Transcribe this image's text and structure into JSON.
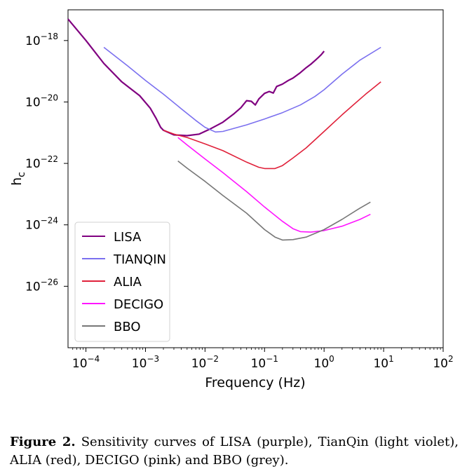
{
  "chart_data": {
    "type": "line",
    "xlabel": "Frequency (Hz)",
    "ylabel_base": "h",
    "ylabel_sub": "c",
    "x_scale": "log",
    "y_scale": "log",
    "xlim": [
      5e-05,
      100
    ],
    "ylim": [
      1e-28,
      1e-17
    ],
    "x_ticks": [
      {
        "value": 0.0001,
        "base": "10",
        "exp": "−4"
      },
      {
        "value": 0.001,
        "base": "10",
        "exp": "−3"
      },
      {
        "value": 0.01,
        "base": "10",
        "exp": "−2"
      },
      {
        "value": 0.1,
        "base": "10",
        "exp": "−1"
      },
      {
        "value": 1,
        "base": "10",
        "exp": "0"
      },
      {
        "value": 10,
        "base": "10",
        "exp": "1"
      },
      {
        "value": 100,
        "base": "10",
        "exp": "2"
      }
    ],
    "y_ticks": [
      {
        "value": 1e-18,
        "base": "10",
        "exp": "−18"
      },
      {
        "value": 1e-20,
        "base": "10",
        "exp": "−20"
      },
      {
        "value": 1e-22,
        "base": "10",
        "exp": "−22"
      },
      {
        "value": 1e-24,
        "base": "10",
        "exp": "−24"
      },
      {
        "value": 1e-26,
        "base": "10",
        "exp": "−26"
      }
    ],
    "legend_position": "lower-left",
    "series": [
      {
        "name": "LISA",
        "color": "#800080",
        "width": 2.2,
        "x": [
          5e-05,
          0.0001,
          0.0002,
          0.0004,
          0.0008,
          0.0012,
          0.0015,
          0.0018,
          0.002,
          0.003,
          0.005,
          0.008,
          0.012,
          0.02,
          0.03,
          0.04,
          0.05,
          0.06,
          0.07,
          0.08,
          0.1,
          0.12,
          0.14,
          0.16,
          0.2,
          0.25,
          0.3,
          0.4,
          0.5,
          0.6,
          0.7,
          0.8,
          0.9,
          1.0
        ],
        "y": [
          5e-18,
          1e-18,
          1.8e-19,
          4.5e-20,
          1.6e-20,
          6.3e-21,
          3e-21,
          1.5e-21,
          1.2e-21,
          8.5e-22,
          8e-22,
          9e-22,
          1.3e-21,
          2.2e-21,
          4e-21,
          6.5e-21,
          1.1e-20,
          1.05e-20,
          8e-21,
          1.25e-20,
          1.9e-20,
          2.2e-20,
          1.95e-20,
          3.2e-20,
          3.8e-20,
          5e-20,
          6e-20,
          9e-20,
          1.3e-19,
          1.7e-19,
          2.2e-19,
          2.8e-19,
          3.5e-19,
          4.5e-19
        ]
      },
      {
        "name": "TIANQIN",
        "color": "#7b70ef",
        "width": 1.6,
        "x": [
          0.0002,
          0.0005,
          0.001,
          0.002,
          0.004,
          0.007,
          0.01,
          0.015,
          0.02,
          0.05,
          0.1,
          0.2,
          0.4,
          0.7,
          1,
          2,
          4,
          9
        ],
        "y": [
          6e-19,
          1.5e-19,
          5e-20,
          1.8e-20,
          6e-21,
          2.5e-21,
          1.5e-21,
          1.05e-21,
          1.1e-21,
          1.8e-21,
          2.8e-21,
          4.5e-21,
          8e-21,
          1.5e-20,
          2.5e-20,
          8e-20,
          2.3e-19,
          6e-19
        ]
      },
      {
        "name": "ALIA",
        "color": "#e0213a",
        "width": 1.6,
        "x": [
          0.002,
          0.003,
          0.005,
          0.01,
          0.02,
          0.05,
          0.08,
          0.1,
          0.15,
          0.2,
          0.3,
          0.5,
          1,
          2,
          5,
          9
        ],
        "y": [
          1.2e-21,
          9e-22,
          7e-22,
          4.3e-22,
          2.6e-22,
          1.1e-22,
          7.5e-23,
          6.8e-23,
          6.8e-23,
          8.5e-23,
          1.5e-22,
          3.2e-22,
          1.1e-21,
          3.8e-21,
          1.8e-20,
          4.5e-20
        ]
      },
      {
        "name": "DECIGO",
        "color": "#ff15ff",
        "width": 1.6,
        "x": [
          0.0035,
          0.005,
          0.01,
          0.02,
          0.05,
          0.1,
          0.2,
          0.3,
          0.4,
          0.6,
          1,
          2,
          4,
          6
        ],
        "y": [
          7e-22,
          4e-22,
          1.4e-22,
          5e-23,
          1.2e-23,
          3.8e-24,
          1.3e-24,
          7.5e-25,
          6e-25,
          5.8e-25,
          6.5e-25,
          9e-25,
          1.5e-24,
          2.2e-24
        ]
      },
      {
        "name": "BBO",
        "color": "#777777",
        "width": 1.6,
        "x": [
          0.0035,
          0.005,
          0.01,
          0.02,
          0.05,
          0.1,
          0.15,
          0.2,
          0.3,
          0.5,
          1,
          2,
          4,
          6
        ],
        "y": [
          1.2e-22,
          7e-23,
          2.6e-23,
          9e-24,
          2.4e-24,
          7e-25,
          4e-25,
          3.2e-25,
          3.3e-25,
          4e-25,
          7e-25,
          1.5e-24,
          3.5e-24,
          5.5e-24
        ]
      }
    ]
  },
  "caption": {
    "lead": "Figure 2.",
    "text": " Sensitivity curves of LISA (purple), TianQin (light violet), ALIA (red), DECIGO (pink) and BBO (grey)."
  }
}
